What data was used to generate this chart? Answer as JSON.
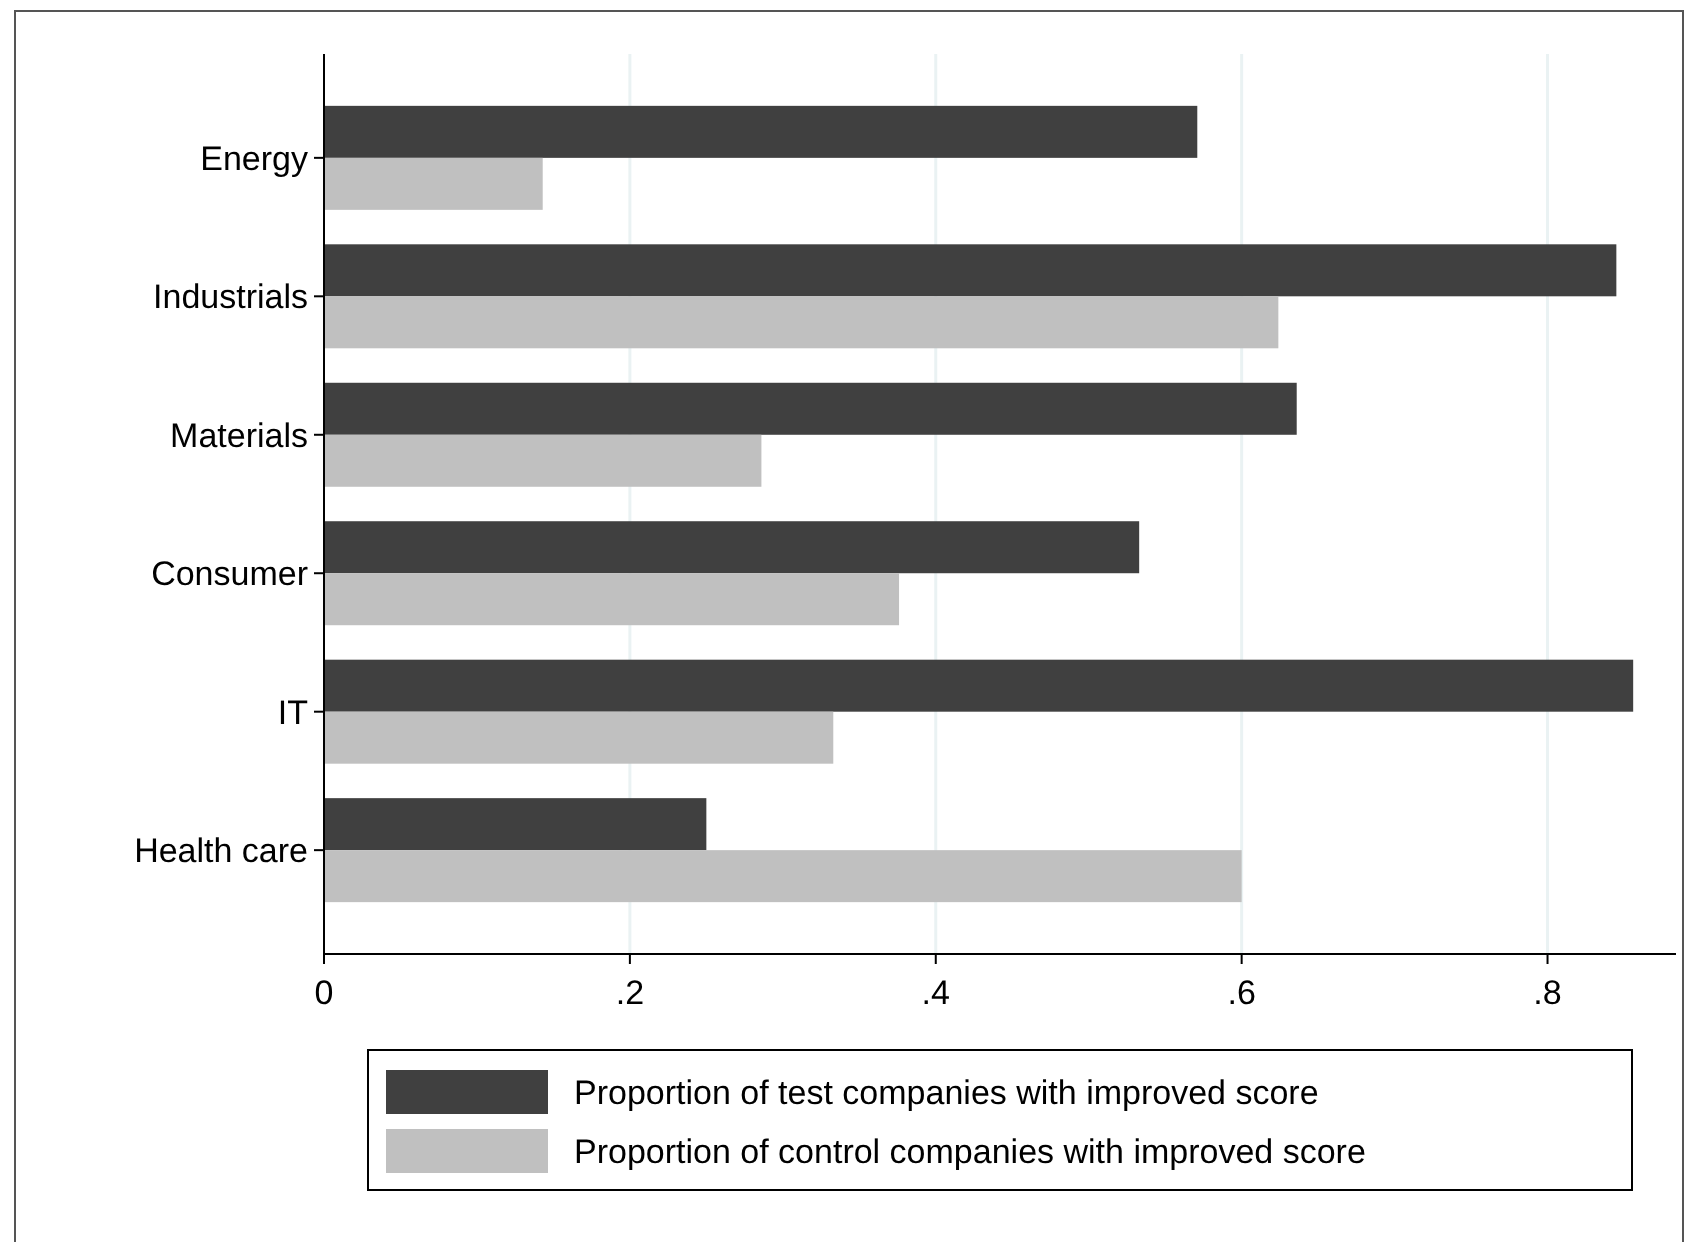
{
  "chart_data": {
    "type": "bar",
    "orientation": "horizontal",
    "categories": [
      "Energy",
      "Industrials",
      "Materials",
      "Consumer",
      "IT",
      "Health care"
    ],
    "series": [
      {
        "name": "Proportion of test companies with improved score",
        "color": "#404040",
        "values": [
          0.571,
          0.845,
          0.636,
          0.533,
          0.856,
          0.25
        ]
      },
      {
        "name": "Proportion of control companies with improved score",
        "color": "#c0c0c0",
        "values": [
          0.143,
          0.624,
          0.286,
          0.376,
          0.333,
          0.6
        ]
      }
    ],
    "xlim": [
      0,
      0.884
    ],
    "xticks": [
      0,
      {
        "value": 0.2,
        "label": ".2"
      },
      {
        "value": 0.4,
        "label": ".4"
      },
      {
        "value": 0.6,
        "label": ".6"
      },
      {
        "value": 0.8,
        "label": ".8"
      }
    ],
    "grid": "x",
    "legend": "bottom"
  }
}
